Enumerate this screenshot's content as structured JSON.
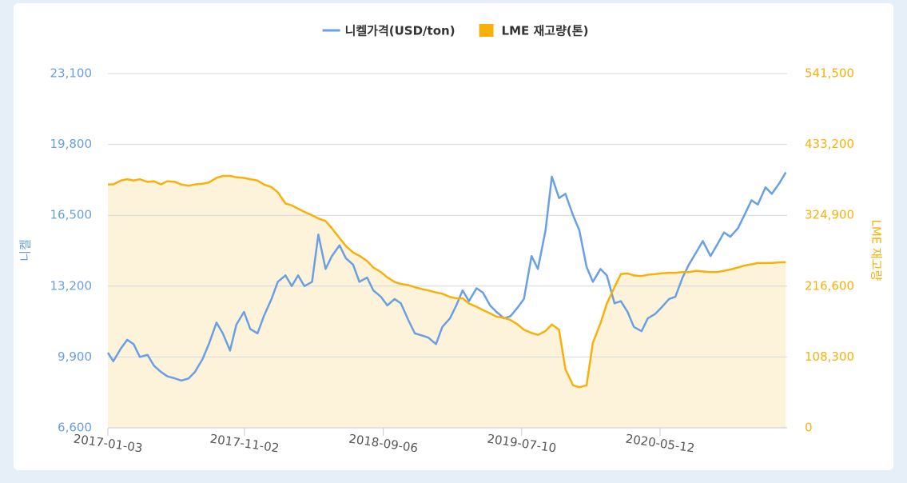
{
  "chart_data": {
    "type": "line",
    "legend": "top",
    "grid": true,
    "y_label": "니켈",
    "y2_label": "LME 재고량",
    "x": [
      "2017-01-03",
      "2017-01-15",
      "2017-02-01",
      "2017-02-15",
      "2017-03-01",
      "2017-03-15",
      "2017-04-01",
      "2017-04-15",
      "2017-05-01",
      "2017-05-15",
      "2017-06-01",
      "2017-06-15",
      "2017-07-01",
      "2017-07-15",
      "2017-08-01",
      "2017-08-15",
      "2017-09-01",
      "2017-09-15",
      "2017-10-01",
      "2017-10-15",
      "2017-11-01",
      "2017-11-15",
      "2017-12-01",
      "2017-12-15",
      "2018-01-01",
      "2018-01-15",
      "2018-02-01",
      "2018-02-15",
      "2018-03-01",
      "2018-03-15",
      "2018-04-01",
      "2018-04-15",
      "2018-05-01",
      "2018-05-15",
      "2018-06-01",
      "2018-06-15",
      "2018-07-01",
      "2018-07-15",
      "2018-08-01",
      "2018-08-15",
      "2018-09-01",
      "2018-09-15",
      "2018-10-01",
      "2018-10-15",
      "2018-11-01",
      "2018-11-15",
      "2018-12-01",
      "2018-12-15",
      "2019-01-01",
      "2019-01-15",
      "2019-02-01",
      "2019-02-15",
      "2019-03-01",
      "2019-03-15",
      "2019-04-01",
      "2019-04-15",
      "2019-05-01",
      "2019-05-15",
      "2019-06-01",
      "2019-06-15",
      "2019-07-01",
      "2019-07-15",
      "2019-08-01",
      "2019-08-15",
      "2019-09-01",
      "2019-09-15",
      "2019-10-01",
      "2019-10-15",
      "2019-11-01",
      "2019-11-15",
      "2019-12-01",
      "2019-12-15",
      "2020-01-01",
      "2020-01-15",
      "2020-02-01",
      "2020-02-15",
      "2020-03-01",
      "2020-03-15",
      "2020-04-01",
      "2020-04-15",
      "2020-05-01",
      "2020-05-15",
      "2020-06-01",
      "2020-06-15",
      "2020-07-01",
      "2020-07-15",
      "2020-08-01",
      "2020-08-15",
      "2020-09-01",
      "2020-09-15",
      "2020-10-01",
      "2020-10-15",
      "2020-11-01",
      "2020-11-15",
      "2020-12-01",
      "2020-12-15",
      "2021-01-01",
      "2021-01-15",
      "2021-02-01",
      "2021-02-15"
    ],
    "xlim": [
      "2017-01-03",
      "2021-02-18"
    ],
    "xticks": [
      "2017-01-03",
      "2017-11-02",
      "2018-09-06",
      "2019-07-10",
      "2020-05-12"
    ],
    "ylim": [
      6600,
      23100
    ],
    "yticks": [
      {
        "value": 6600,
        "label": "6,600"
      },
      {
        "value": 9900,
        "label": "9,900"
      },
      {
        "value": 13200,
        "label": "13,200"
      },
      {
        "value": 16500,
        "label": "16,500"
      },
      {
        "value": 19800,
        "label": "19,800"
      },
      {
        "value": 23100,
        "label": "23,100"
      }
    ],
    "y2lim": [
      0,
      541500
    ],
    "y2ticks": [
      0,
      {
        "value": 108300,
        "label": "108,300"
      },
      {
        "value": 216600,
        "label": "216,600"
      },
      {
        "value": 324900,
        "label": "324,900"
      },
      {
        "value": 433200,
        "label": "433,200"
      },
      {
        "value": 541500,
        "label": "541,500"
      }
    ],
    "series": [
      {
        "name": "니켈가격(USD/ton)",
        "color": "#6a9fe2",
        "values": [
          10100,
          9700,
          10300,
          10700,
          10500,
          9900,
          10000,
          9500,
          9200,
          9000,
          8900,
          8800,
          8900,
          9200,
          9800,
          10500,
          11500,
          11000,
          10200,
          11400,
          12000,
          11200,
          11000,
          11800,
          12600,
          13400,
          13700,
          13200,
          13700,
          13200,
          13400,
          15600,
          14000,
          14600,
          15100,
          14500,
          14200,
          13400,
          13600,
          13000,
          12700,
          12300,
          12600,
          12400,
          11600,
          11000,
          10900,
          10800,
          10500,
          11300,
          11700,
          12300,
          13000,
          12500,
          13100,
          12900,
          12300,
          12000,
          11700,
          11800,
          12200,
          12600,
          14600,
          14000,
          15800,
          18300,
          17300,
          17500,
          16500,
          15800,
          14100,
          13400,
          14000,
          13700,
          12400,
          12500,
          12000,
          11300,
          11100,
          11700,
          11900,
          12200,
          12600,
          12700,
          13600,
          14200,
          14800,
          15300,
          14600,
          15100,
          15700,
          15500,
          15900,
          16500,
          17200,
          17000,
          17800,
          17500,
          18000,
          18500
        ]
      },
      {
        "name": "LME 재고량(톤)",
        "color": "#f8b10a",
        "fill": "#fdf3da",
        "axis": "y2",
        "values": [
          372000,
          372000,
          378000,
          380000,
          378000,
          380000,
          376000,
          377000,
          372000,
          377000,
          376000,
          372000,
          370000,
          372000,
          373000,
          375000,
          382000,
          385000,
          385000,
          383000,
          382000,
          380000,
          378000,
          372000,
          368000,
          360000,
          343000,
          340000,
          335000,
          330000,
          325000,
          320000,
          316000,
          305000,
          290000,
          278000,
          268000,
          263000,
          255000,
          245000,
          238000,
          230000,
          223000,
          220000,
          218000,
          215000,
          212000,
          210000,
          207000,
          205000,
          200000,
          198000,
          198000,
          190000,
          185000,
          180000,
          175000,
          170000,
          168000,
          165000,
          158000,
          150000,
          145000,
          142000,
          148000,
          158000,
          150000,
          90000,
          65000,
          62000,
          65000,
          130000,
          160000,
          190000,
          215000,
          235000,
          236000,
          233000,
          232000,
          234000,
          235000,
          236000,
          237000,
          237000,
          238000,
          238000,
          240000,
          239000,
          238000,
          238000,
          240000,
          242000,
          245000,
          248000,
          250000,
          252000,
          252000,
          252000,
          253000,
          253000
        ]
      }
    ]
  }
}
